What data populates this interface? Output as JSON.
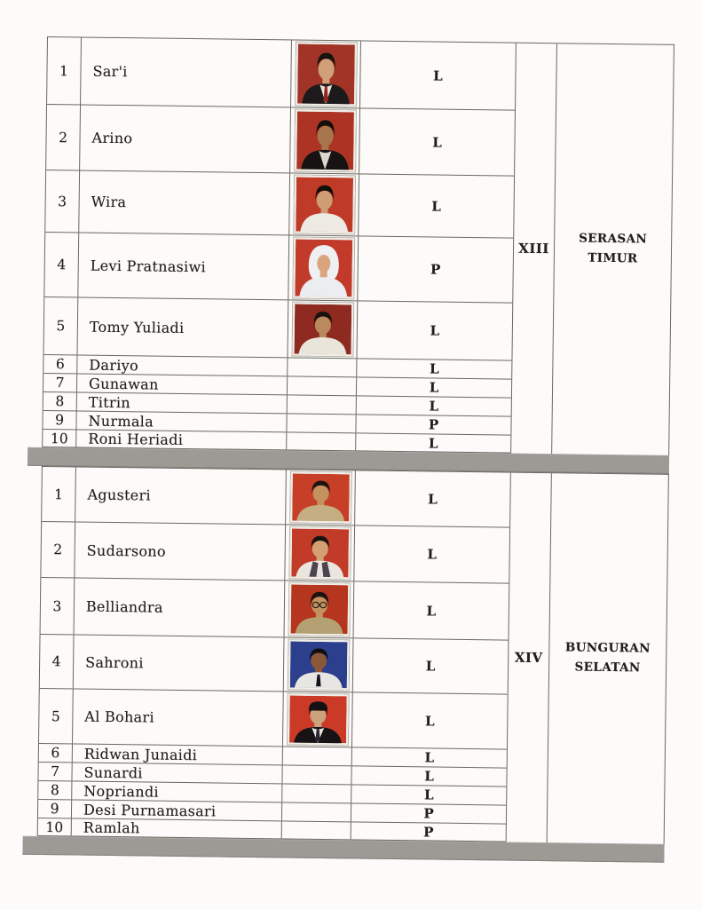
{
  "document": {
    "colors": {
      "page_background": "#fcfbf9",
      "separator_bar": "#9b9a95",
      "table_border": "#6b6862",
      "text": "#221f1b",
      "photo_frame": "#f0ede7"
    },
    "gender_labels": {
      "male": "L",
      "female": "P"
    },
    "sections": [
      {
        "region_number": "XIII",
        "region_name": "SERASAN TIMUR",
        "members": [
          {
            "no": "1",
            "name": "Sar'i",
            "gender": "L",
            "photo": {
              "bg": "#a13426",
              "skin": "#d2a078",
              "hair": "#17130f",
              "torso": "#1d1a1c",
              "shirt": "#e9e4da",
              "tie": "#93251c"
            }
          },
          {
            "no": "2",
            "name": "Arino",
            "gender": "L",
            "photo": {
              "bg": "#ad3425",
              "skin": "#a8764c",
              "hair": "#14100c",
              "torso": "#161312",
              "shirt": "#ddd8cd"
            }
          },
          {
            "no": "3",
            "name": "Wira",
            "gender": "L",
            "photo": {
              "bg": "#c03a28",
              "skin": "#cf9d74",
              "hair": "#120f0b",
              "torso": "#eceae2"
            }
          },
          {
            "no": "4",
            "name": "Levi Pratnasiwi",
            "gender": "P",
            "photo": {
              "bg": "#c23b2a",
              "skin": "#d8a57f",
              "hijab": "#eff0f2",
              "torso": "#ebedf0"
            }
          },
          {
            "no": "5",
            "name": "Tomy Yuliadi",
            "gender": "L",
            "photo": {
              "bg": "#8f2a20",
              "skin": "#b88a5e",
              "hair": "#16120e",
              "torso": "#e9e5da"
            }
          },
          {
            "no": "6",
            "name": "Dariyo",
            "gender": "L"
          },
          {
            "no": "7",
            "name": "Gunawan",
            "gender": "L"
          },
          {
            "no": "8",
            "name": "Titrin",
            "gender": "L"
          },
          {
            "no": "9",
            "name": "Nurmala",
            "gender": "P"
          },
          {
            "no": "10",
            "name": "Roni Heriadi",
            "gender": "L"
          }
        ]
      },
      {
        "region_number": "XIV",
        "region_name": "BUNGURAN SELATAN",
        "members": [
          {
            "no": "1",
            "name": "Agusteri",
            "gender": "L",
            "photo": {
              "bg": "#c73f27",
              "skin": "#c3935f",
              "hair": "#1a150f",
              "torso": "#c6ae83"
            }
          },
          {
            "no": "2",
            "name": "Sudarsono",
            "gender": "L",
            "photo": {
              "bg": "#c23a28",
              "skin": "#d3a074",
              "hair": "#181310",
              "torso": "#e9e6df",
              "scarf": "#4f4350"
            }
          },
          {
            "no": "3",
            "name": "Belliandra",
            "gender": "L",
            "photo": {
              "bg": "#b5351f",
              "skin": "#c3935f",
              "hair": "#191410",
              "torso": "#b4a173",
              "glasses": true
            }
          },
          {
            "no": "4",
            "name": "Sahroni",
            "gender": "L",
            "photo": {
              "bg": "#2b3f8c",
              "skin": "#8a5836",
              "hair": "#100d0b",
              "torso": "#e7e6e2",
              "tie": "#16151a"
            }
          },
          {
            "no": "5",
            "name": "Al Bohari",
            "gender": "L",
            "photo": {
              "bg": "#cb3a27",
              "skin": "#caa27c",
              "hair": "#121010",
              "torso": "#151315",
              "shirt": "#e8e5de",
              "tie": "#2a2530",
              "cap": "#141114"
            }
          },
          {
            "no": "6",
            "name": "Ridwan Junaidi",
            "gender": "L"
          },
          {
            "no": "7",
            "name": "Sunardi",
            "gender": "L"
          },
          {
            "no": "8",
            "name": "Nopriandi",
            "gender": "L"
          },
          {
            "no": "9",
            "name": "Desi Purnamasari",
            "gender": "P"
          },
          {
            "no": "10",
            "name": "Ramlah",
            "gender": "P"
          }
        ]
      }
    ]
  }
}
